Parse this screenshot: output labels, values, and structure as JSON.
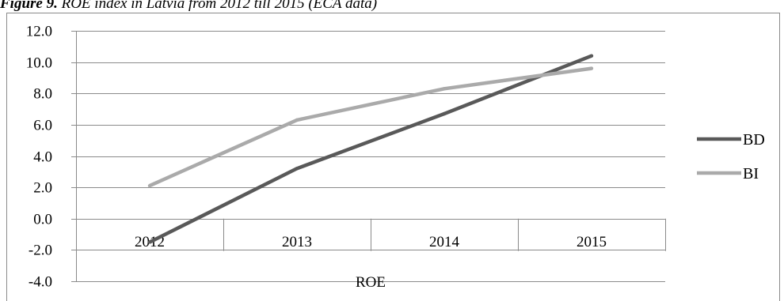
{
  "caption": {
    "prefix": "Figure 9.",
    "text": "ROE index in Latvia from 2012 till 2015 (ECA data)"
  },
  "chart_data": {
    "type": "line",
    "categories": [
      "2012",
      "2013",
      "2014",
      "2015"
    ],
    "xlabel": "ROE",
    "ylabel": "",
    "ylim": [
      -4.0,
      12.0
    ],
    "yticks": [
      "-4.0",
      "-2.0",
      "0.0",
      "2.0",
      "4.0",
      "6.0",
      "8.0",
      "10.0",
      "12.0"
    ],
    "grid": true,
    "legend_position": "right",
    "series": [
      {
        "name": "BD",
        "color": "#595959",
        "values": [
          -1.5,
          3.2,
          6.7,
          10.4
        ]
      },
      {
        "name": "BI",
        "color": "#aaaaaa",
        "values": [
          2.1,
          6.3,
          8.3,
          9.6
        ]
      }
    ]
  }
}
